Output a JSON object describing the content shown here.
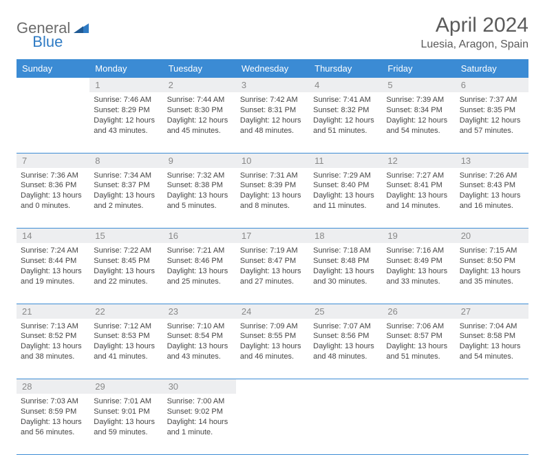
{
  "logo": {
    "text1": "General",
    "text2": "Blue"
  },
  "title": "April 2024",
  "location": "Luesia, Aragon, Spain",
  "colors": {
    "header_bg": "#3b8bd4",
    "header_text": "#ffffff",
    "daynum_bg": "#edeef0",
    "daynum_text": "#888888",
    "body_text": "#444444",
    "rule": "#3b8bd4",
    "logo_gray": "#6b6b6b",
    "logo_blue": "#2f7bc4"
  },
  "weekdays": [
    "Sunday",
    "Monday",
    "Tuesday",
    "Wednesday",
    "Thursday",
    "Friday",
    "Saturday"
  ],
  "weeks": [
    [
      null,
      {
        "n": "1",
        "sr": "7:46 AM",
        "ss": "8:29 PM",
        "dl": "12 hours and 43 minutes."
      },
      {
        "n": "2",
        "sr": "7:44 AM",
        "ss": "8:30 PM",
        "dl": "12 hours and 45 minutes."
      },
      {
        "n": "3",
        "sr": "7:42 AM",
        "ss": "8:31 PM",
        "dl": "12 hours and 48 minutes."
      },
      {
        "n": "4",
        "sr": "7:41 AM",
        "ss": "8:32 PM",
        "dl": "12 hours and 51 minutes."
      },
      {
        "n": "5",
        "sr": "7:39 AM",
        "ss": "8:34 PM",
        "dl": "12 hours and 54 minutes."
      },
      {
        "n": "6",
        "sr": "7:37 AM",
        "ss": "8:35 PM",
        "dl": "12 hours and 57 minutes."
      }
    ],
    [
      {
        "n": "7",
        "sr": "7:36 AM",
        "ss": "8:36 PM",
        "dl": "13 hours and 0 minutes."
      },
      {
        "n": "8",
        "sr": "7:34 AM",
        "ss": "8:37 PM",
        "dl": "13 hours and 2 minutes."
      },
      {
        "n": "9",
        "sr": "7:32 AM",
        "ss": "8:38 PM",
        "dl": "13 hours and 5 minutes."
      },
      {
        "n": "10",
        "sr": "7:31 AM",
        "ss": "8:39 PM",
        "dl": "13 hours and 8 minutes."
      },
      {
        "n": "11",
        "sr": "7:29 AM",
        "ss": "8:40 PM",
        "dl": "13 hours and 11 minutes."
      },
      {
        "n": "12",
        "sr": "7:27 AM",
        "ss": "8:41 PM",
        "dl": "13 hours and 14 minutes."
      },
      {
        "n": "13",
        "sr": "7:26 AM",
        "ss": "8:43 PM",
        "dl": "13 hours and 16 minutes."
      }
    ],
    [
      {
        "n": "14",
        "sr": "7:24 AM",
        "ss": "8:44 PM",
        "dl": "13 hours and 19 minutes."
      },
      {
        "n": "15",
        "sr": "7:22 AM",
        "ss": "8:45 PM",
        "dl": "13 hours and 22 minutes."
      },
      {
        "n": "16",
        "sr": "7:21 AM",
        "ss": "8:46 PM",
        "dl": "13 hours and 25 minutes."
      },
      {
        "n": "17",
        "sr": "7:19 AM",
        "ss": "8:47 PM",
        "dl": "13 hours and 27 minutes."
      },
      {
        "n": "18",
        "sr": "7:18 AM",
        "ss": "8:48 PM",
        "dl": "13 hours and 30 minutes."
      },
      {
        "n": "19",
        "sr": "7:16 AM",
        "ss": "8:49 PM",
        "dl": "13 hours and 33 minutes."
      },
      {
        "n": "20",
        "sr": "7:15 AM",
        "ss": "8:50 PM",
        "dl": "13 hours and 35 minutes."
      }
    ],
    [
      {
        "n": "21",
        "sr": "7:13 AM",
        "ss": "8:52 PM",
        "dl": "13 hours and 38 minutes."
      },
      {
        "n": "22",
        "sr": "7:12 AM",
        "ss": "8:53 PM",
        "dl": "13 hours and 41 minutes."
      },
      {
        "n": "23",
        "sr": "7:10 AM",
        "ss": "8:54 PM",
        "dl": "13 hours and 43 minutes."
      },
      {
        "n": "24",
        "sr": "7:09 AM",
        "ss": "8:55 PM",
        "dl": "13 hours and 46 minutes."
      },
      {
        "n": "25",
        "sr": "7:07 AM",
        "ss": "8:56 PM",
        "dl": "13 hours and 48 minutes."
      },
      {
        "n": "26",
        "sr": "7:06 AM",
        "ss": "8:57 PM",
        "dl": "13 hours and 51 minutes."
      },
      {
        "n": "27",
        "sr": "7:04 AM",
        "ss": "8:58 PM",
        "dl": "13 hours and 54 minutes."
      }
    ],
    [
      {
        "n": "28",
        "sr": "7:03 AM",
        "ss": "8:59 PM",
        "dl": "13 hours and 56 minutes."
      },
      {
        "n": "29",
        "sr": "7:01 AM",
        "ss": "9:01 PM",
        "dl": "13 hours and 59 minutes."
      },
      {
        "n": "30",
        "sr": "7:00 AM",
        "ss": "9:02 PM",
        "dl": "14 hours and 1 minute."
      },
      null,
      null,
      null,
      null
    ]
  ],
  "labels": {
    "sunrise": "Sunrise:",
    "sunset": "Sunset:",
    "daylight": "Daylight:"
  }
}
